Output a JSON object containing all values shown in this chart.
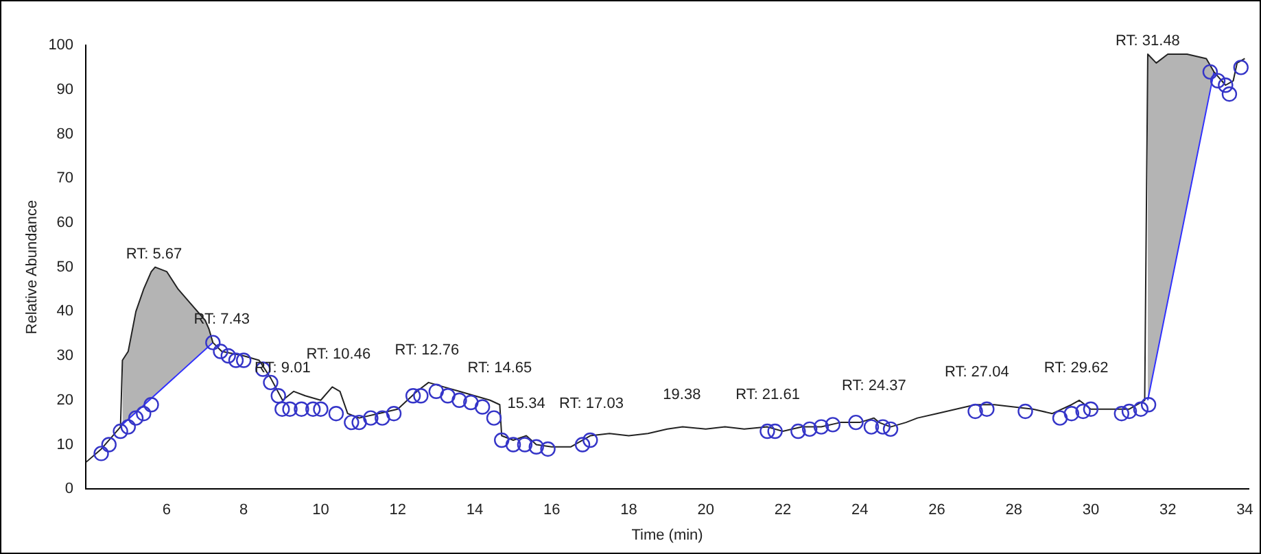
{
  "chart_data": {
    "type": "line",
    "xlabel": "Time (min)",
    "ylabel": "Relative Abundance",
    "xlim": [
      3.9,
      34.1
    ],
    "xticks": [
      6,
      8,
      10,
      12,
      14,
      16,
      18,
      20,
      22,
      24,
      26,
      28,
      30,
      32,
      34
    ],
    "ylim": [
      0,
      100
    ],
    "yticks": [
      0,
      10,
      20,
      30,
      40,
      50,
      60,
      70,
      80,
      90,
      100
    ],
    "grid": false,
    "legend": false,
    "series": [
      {
        "color": "#222222",
        "marker": "none",
        "x": [
          3.9,
          4.3,
          4.6,
          4.8,
          4.85,
          5.0,
          5.2,
          5.4,
          5.6,
          5.7,
          6.0,
          6.3,
          6.6,
          7.0,
          7.1,
          7.2,
          7.43,
          8.0,
          8.4,
          8.7,
          9.01,
          9.3,
          9.6,
          10.0,
          10.3,
          10.5,
          10.7,
          11.0,
          11.5,
          12.0,
          12.5,
          12.8,
          13.2,
          13.6,
          14.0,
          14.4,
          14.65,
          14.7,
          15.0,
          15.34,
          15.6,
          16.0,
          16.5,
          17.0,
          17.5,
          18.0,
          18.5,
          19.0,
          19.4,
          20.0,
          20.5,
          21.0,
          21.6,
          22.0,
          22.5,
          23.0,
          23.5,
          24.0,
          24.37,
          24.5,
          24.8,
          25.2,
          25.5,
          26.0,
          26.5,
          27.0,
          27.5,
          28.0,
          28.5,
          29.0,
          29.5,
          29.7,
          30.0,
          30.5,
          31.0,
          31.4,
          31.48,
          31.7,
          32.0,
          32.5,
          33.0,
          33.2,
          33.5,
          33.7,
          33.8,
          34.0
        ],
        "values": [
          6,
          9,
          12,
          14,
          29,
          31,
          40,
          45,
          49,
          50,
          49,
          45,
          42,
          38,
          36,
          33,
          31,
          30,
          29,
          25,
          20,
          22,
          21,
          20,
          23,
          22,
          17,
          16,
          17,
          18,
          22,
          24,
          23,
          22,
          21,
          20,
          19,
          12,
          11,
          12,
          10,
          9.5,
          9.5,
          12,
          12.5,
          12,
          12.5,
          13.5,
          14,
          13.5,
          14,
          13.5,
          14,
          13,
          14,
          14,
          15,
          15,
          16,
          15,
          14,
          15,
          16,
          17,
          18,
          19,
          19,
          18.5,
          18,
          17,
          19,
          20,
          18,
          18,
          18,
          20,
          98,
          96,
          98,
          98,
          97,
          94,
          91,
          92,
          96,
          97
        ],
        "lower": [
          null,
          null,
          null,
          null,
          14.5,
          15.7,
          17.3,
          18.8,
          20.4,
          21.2,
          23.6,
          25.9,
          28.3,
          31.4,
          32.2,
          33,
          null,
          null,
          null,
          null,
          null,
          null,
          null,
          null,
          null,
          null,
          null,
          null,
          null,
          null,
          null,
          null,
          null,
          null,
          null,
          null,
          null,
          null,
          null,
          null,
          null,
          null,
          null,
          null,
          null,
          null,
          null,
          null,
          null,
          null,
          null,
          null,
          null,
          null,
          null,
          null,
          null,
          null,
          null,
          null,
          null,
          null,
          null,
          null,
          null,
          null,
          null,
          null,
          null,
          null,
          null,
          null,
          null,
          null,
          null,
          null,
          20,
          29.5,
          42.4,
          63.9,
          85.4,
          94,
          null,
          null,
          null,
          null
        ],
        "upper": [
          null,
          null,
          null,
          null,
          29,
          31,
          40,
          45,
          49,
          50,
          49,
          45,
          42,
          38,
          36,
          33,
          null,
          null,
          null,
          null,
          null,
          null,
          null,
          null,
          null,
          null,
          null,
          null,
          null,
          null,
          null,
          null,
          null,
          null,
          null,
          null,
          null,
          null,
          null,
          null,
          null,
          null,
          null,
          null,
          null,
          null,
          null,
          null,
          null,
          null,
          null,
          null,
          null,
          null,
          null,
          null,
          null,
          null,
          null,
          null,
          null,
          null,
          null,
          null,
          null,
          null,
          null,
          null,
          null,
          null,
          null,
          null,
          null,
          null,
          null,
          null,
          98,
          96,
          98,
          98,
          97,
          94,
          null,
          null,
          null,
          null
        ]
      },
      {
        "type": "line",
        "color": "#3030ff",
        "marker": "none",
        "x": [
          4.85,
          7.2,
          7.3,
          31.48,
          33.2
        ],
        "values": [
          14.5,
          33,
          null,
          20,
          94
        ]
      },
      {
        "type": "scatter",
        "color": "#3535c8",
        "marker": "circle",
        "x": [
          4.3,
          4.5,
          4.8,
          5.0,
          5.2,
          5.4,
          5.6,
          7.2,
          7.4,
          7.6,
          7.8,
          8.0,
          8.5,
          8.7,
          8.9,
          9.0,
          9.2,
          9.5,
          9.8,
          10.0,
          10.4,
          10.8,
          11.0,
          11.3,
          11.6,
          11.9,
          12.4,
          12.6,
          13.0,
          13.3,
          13.6,
          13.9,
          14.2,
          14.5,
          14.7,
          15.0,
          15.3,
          15.6,
          15.9,
          16.8,
          17.0,
          21.6,
          21.8,
          22.4,
          22.7,
          23.0,
          23.3,
          23.9,
          24.3,
          24.6,
          24.8,
          27.0,
          27.3,
          28.3,
          29.2,
          29.5,
          29.8,
          30.0,
          30.8,
          31.0,
          31.3,
          31.5,
          33.1,
          33.3,
          33.5,
          33.6,
          33.9
        ],
        "values": [
          8,
          10,
          13,
          14,
          16,
          17,
          19,
          33,
          31,
          30,
          29,
          29,
          27,
          24,
          21,
          18,
          18,
          18,
          18,
          18,
          17,
          15,
          15,
          16,
          16,
          17,
          21,
          21,
          22,
          21,
          20,
          19.5,
          18.5,
          16,
          11,
          10,
          10,
          9.5,
          9,
          10,
          11,
          13,
          13,
          13,
          13.5,
          14,
          14.5,
          15,
          14,
          14,
          13.5,
          17.5,
          18,
          17.5,
          16,
          17,
          17.5,
          18,
          17,
          17.5,
          18,
          19,
          94,
          92,
          91,
          89,
          95
        ]
      }
    ],
    "annotations": [
      {
        "text": "RT: 5.67",
        "x": 5.67,
        "y": 50
      },
      {
        "text": "RT: 7.43",
        "x": 7.43,
        "y": 31
      },
      {
        "text": "RT: 9.01",
        "x": 9.01,
        "y": 20
      },
      {
        "text": "RT: 10.46",
        "x": 10.46,
        "y": 23
      },
      {
        "text": "RT: 12.76",
        "x": 12.76,
        "y": 24
      },
      {
        "text": "RT: 14.65",
        "x": 14.65,
        "y": 20
      },
      {
        "text": "15.34",
        "x": 15.34,
        "y": 12
      },
      {
        "text": "RT: 17.03",
        "x": 17.03,
        "y": 12
      },
      {
        "text": "19.38",
        "x": 19.38,
        "y": 14
      },
      {
        "text": "RT: 21.61",
        "x": 21.61,
        "y": 14
      },
      {
        "text": "RT: 24.37",
        "x": 24.37,
        "y": 16
      },
      {
        "text": "RT: 27.04",
        "x": 27.04,
        "y": 19
      },
      {
        "text": "RT: 29.62",
        "x": 29.62,
        "y": 20
      },
      {
        "text": "RT: 31.48",
        "x": 31.48,
        "y": 98
      }
    ]
  }
}
